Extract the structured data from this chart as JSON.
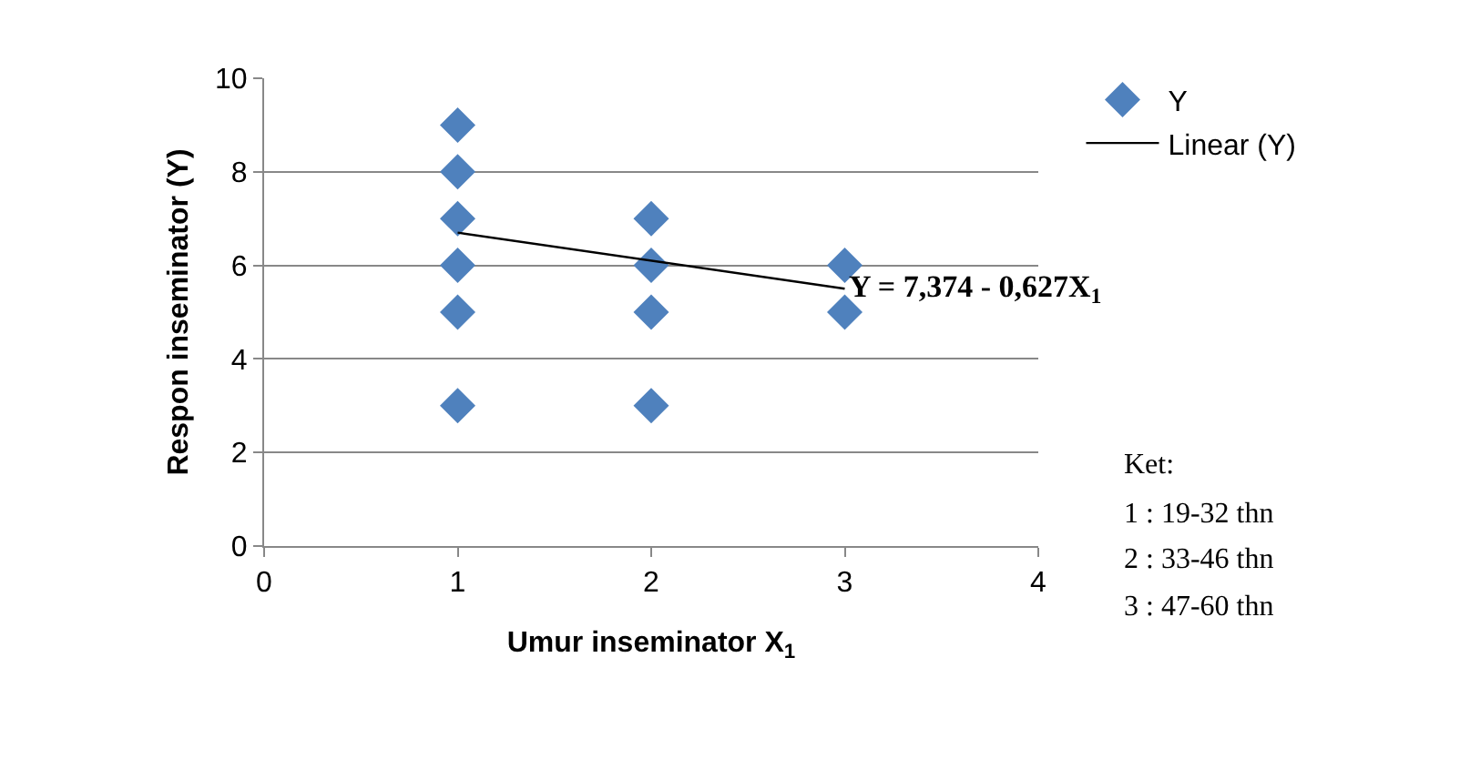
{
  "chart_data": {
    "type": "scatter",
    "xlabel": "Umur inseminator X$_{1}$",
    "ylabel": "Respon inseminator (Y)",
    "xlim": [
      0,
      4
    ],
    "xticks": [
      0,
      1,
      2,
      3,
      4
    ],
    "ylim": [
      0,
      10
    ],
    "yticks": [
      0,
      2,
      4,
      6,
      8,
      10
    ],
    "grid": "y",
    "legend": "top right",
    "series": [
      {
        "name": "Y",
        "color": "#4f81bd",
        "marker": "diamond",
        "x": [
          1,
          1,
          1,
          1,
          1,
          1,
          2,
          2,
          2,
          2,
          3,
          3
        ],
        "values": [
          9,
          8,
          7,
          6,
          5,
          3,
          7,
          6,
          5,
          3,
          6,
          5
        ]
      },
      {
        "name": "Linear (Y)",
        "type": "line",
        "marker": "none",
        "color": "#000000",
        "x": [
          1,
          3
        ],
        "values": [
          6.7,
          5.5
        ]
      }
    ],
    "annotations": [
      {
        "text": "Y = 7,374 - 0,627X$_{1}$",
        "x": 3,
        "y": 5.5
      },
      "Ket:",
      "1 : 19-32 thn",
      "2 : 33-46 thn",
      "3 : 47-60 thn"
    ]
  }
}
